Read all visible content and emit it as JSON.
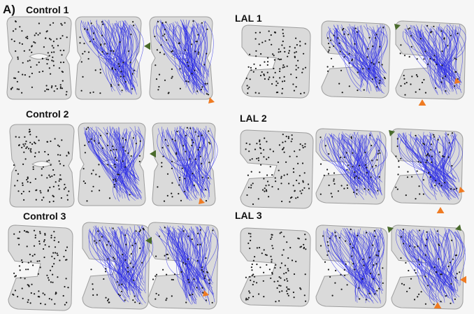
{
  "figure": {
    "panel_label": "A)",
    "groups": [
      {
        "label": "Control 1"
      },
      {
        "label": "Control 2"
      },
      {
        "label": "Control 3"
      },
      {
        "label": "LAL 1"
      },
      {
        "label": "LAL 2"
      },
      {
        "label": "LAL 3"
      }
    ]
  },
  "colors": {
    "shape_fill": "#d9d9d9",
    "shape_stroke": "#9a9a9a",
    "streamline": "#2f2fe6",
    "particle": "#1a1a1a",
    "arrow_green": "#4a6b2c",
    "arrow_orange": "#ef7b22",
    "background": "#f6f6f6"
  }
}
